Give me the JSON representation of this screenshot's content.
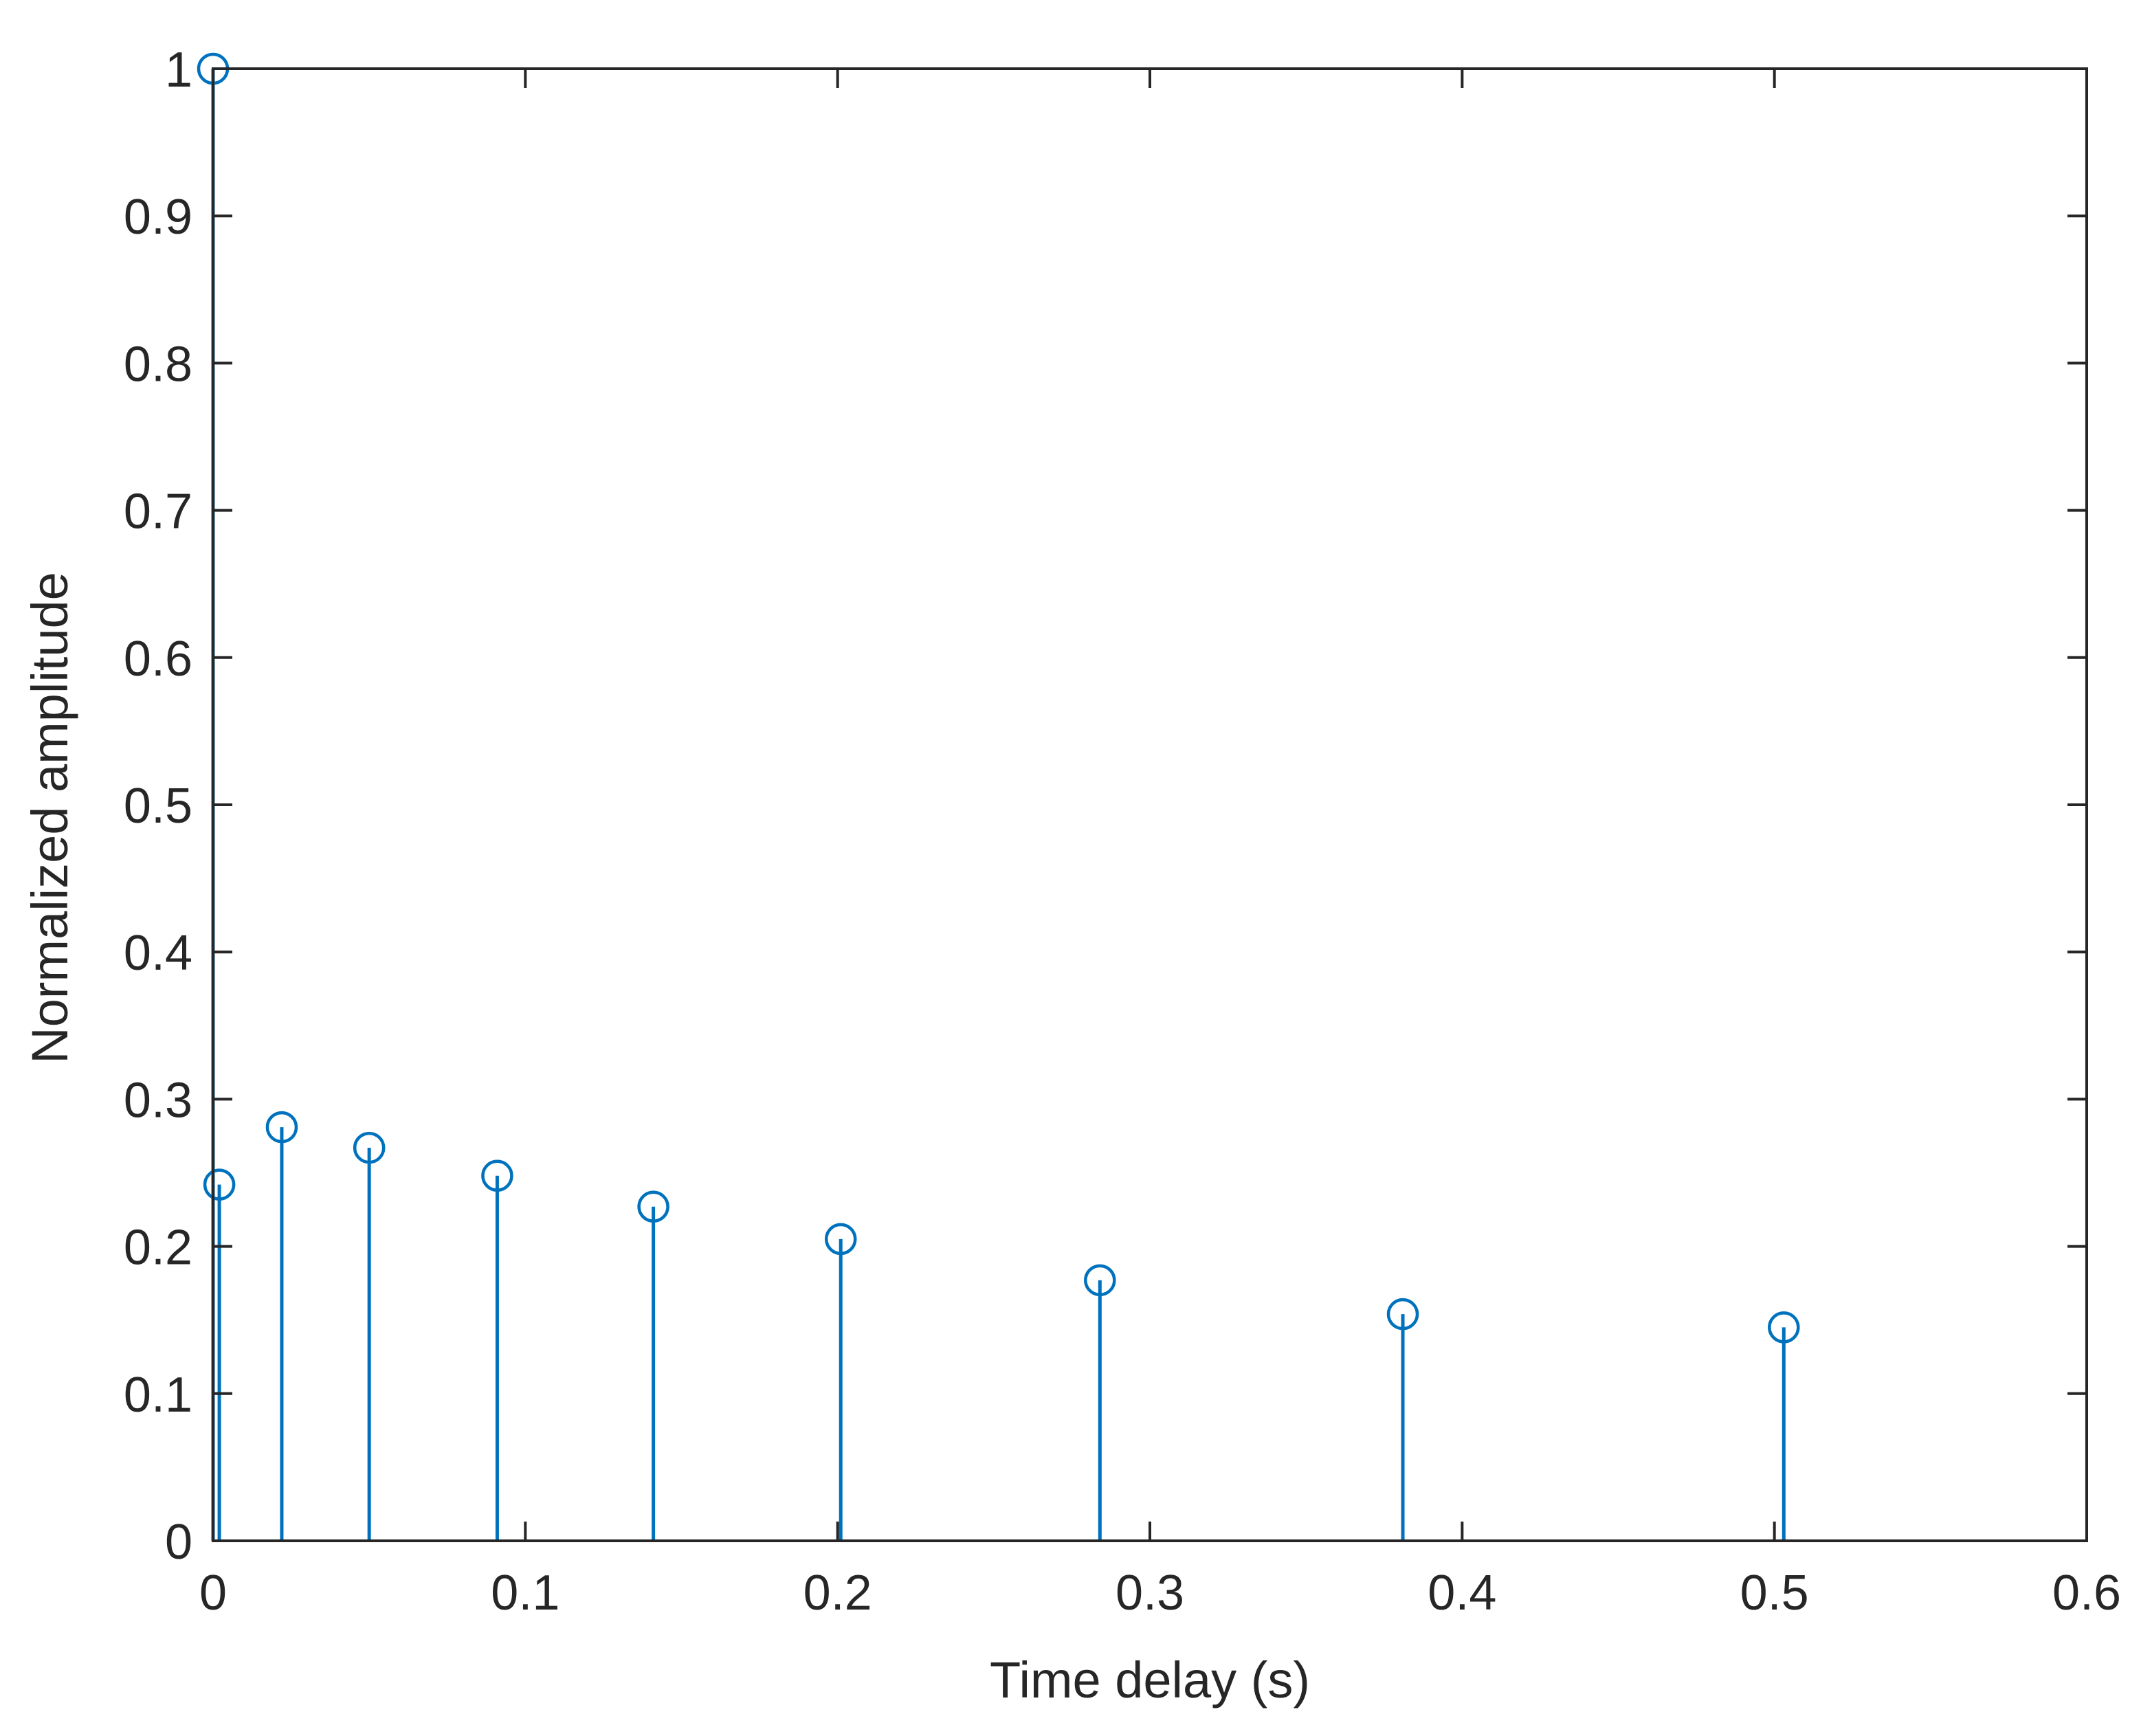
{
  "chart_data": {
    "type": "stem",
    "xlabel": "Time delay (s)",
    "ylabel": "Normalized amplitude",
    "xlim": [
      0,
      0.6
    ],
    "ylim": [
      0,
      1
    ],
    "xticks": [
      0,
      0.1,
      0.2,
      0.3,
      0.4,
      0.5,
      0.6
    ],
    "xtick_labels": [
      "0",
      "0.1",
      "0.2",
      "0.3",
      "0.4",
      "0.5",
      "0.6"
    ],
    "yticks": [
      0,
      0.1,
      0.2,
      0.3,
      0.4,
      0.5,
      0.6,
      0.7,
      0.8,
      0.9,
      1
    ],
    "ytick_labels": [
      "0",
      "0.1",
      "0.2",
      "0.3",
      "0.4",
      "0.5",
      "0.6",
      "0.7",
      "0.8",
      "0.9",
      "1"
    ],
    "grid": false,
    "box": true,
    "series": [
      {
        "color": "#0072BD",
        "marker": "circle",
        "points": [
          {
            "x": 0.0,
            "y": 1.0
          },
          {
            "x": 0.002,
            "y": 0.242
          },
          {
            "x": 0.022,
            "y": 0.281
          },
          {
            "x": 0.05,
            "y": 0.267
          },
          {
            "x": 0.091,
            "y": 0.248
          },
          {
            "x": 0.141,
            "y": 0.227
          },
          {
            "x": 0.201,
            "y": 0.205
          },
          {
            "x": 0.284,
            "y": 0.177
          },
          {
            "x": 0.381,
            "y": 0.154
          },
          {
            "x": 0.503,
            "y": 0.145
          }
        ]
      }
    ]
  }
}
